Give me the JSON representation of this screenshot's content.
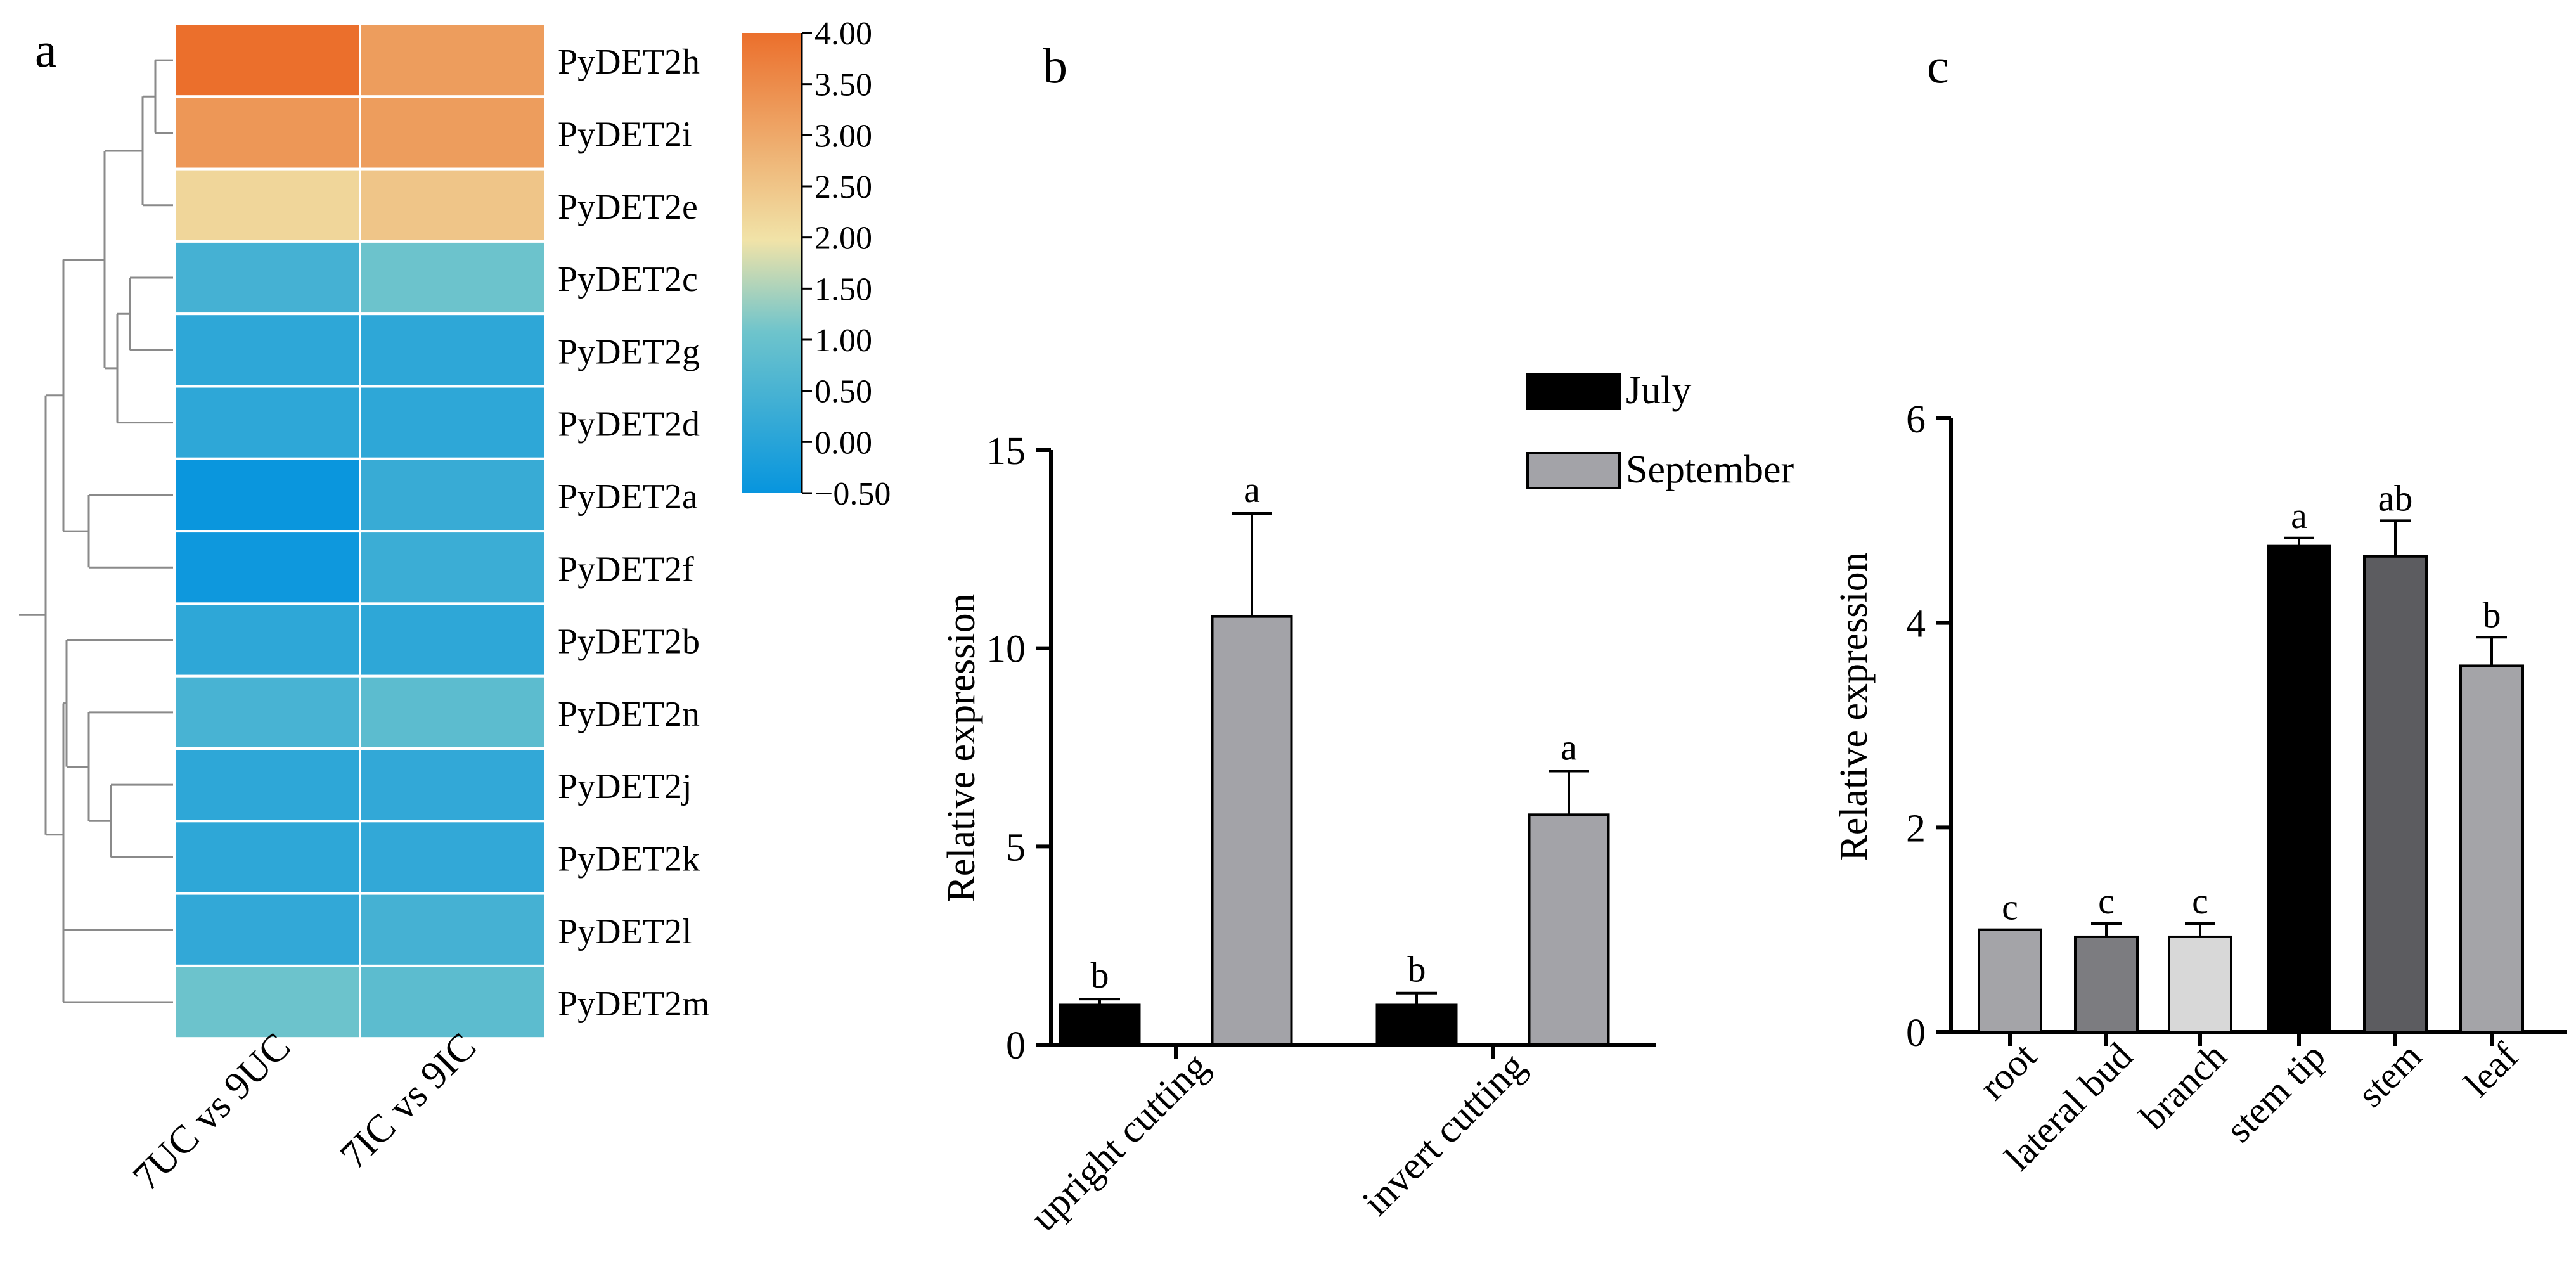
{
  "figure": {
    "panel_labels": [
      "a",
      "b",
      "c"
    ]
  },
  "chart_data": [
    {
      "type": "heatmap",
      "panel": "a",
      "columns": [
        "7UC vs 9UC",
        "7IC vs 9IC"
      ],
      "rows": [
        "PyDET2h",
        "PyDET2i",
        "PyDET2e",
        "PyDET2c",
        "PyDET2g",
        "PyDET2d",
        "PyDET2a",
        "PyDET2f",
        "PyDET2b",
        "PyDET2n",
        "PyDET2j",
        "PyDET2k",
        "PyDET2l",
        "PyDET2m"
      ],
      "values": [
        [
          4.0,
          3.2
        ],
        [
          3.3,
          3.2
        ],
        [
          2.2,
          2.5
        ],
        [
          0.45,
          1.05
        ],
        [
          0.1,
          0.1
        ],
        [
          0.1,
          0.1
        ],
        [
          -0.45,
          0.25
        ],
        [
          -0.4,
          0.3
        ],
        [
          0.1,
          0.1
        ],
        [
          0.5,
          0.8
        ],
        [
          0.1,
          0.15
        ],
        [
          0.1,
          0.15
        ],
        [
          0.15,
          0.45
        ],
        [
          1.05,
          0.8
        ]
      ],
      "colorbar": {
        "min": -0.5,
        "max": 4.0,
        "ticks": [
          "4.00",
          "3.50",
          "3.00",
          "2.50",
          "2.00",
          "1.50",
          "1.00",
          "0.50",
          "0.00",
          "-0.50"
        ],
        "colors": [
          "#0795de",
          "#6ec4cc",
          "#f1e3a8",
          "#eb6f2c"
        ]
      },
      "dendrogram": "row clustering tree (left)"
    },
    {
      "type": "bar",
      "panel": "b",
      "categories": [
        "upright cutting",
        "invert cutting"
      ],
      "series": [
        {
          "name": "July",
          "values": [
            1.0,
            1.0
          ],
          "errors": [
            0.15,
            0.3
          ],
          "letters": [
            "b",
            "b"
          ],
          "color": "#000000"
        },
        {
          "name": "September",
          "values": [
            10.8,
            5.8
          ],
          "errors": [
            2.6,
            1.1
          ],
          "letters": [
            "a",
            "a"
          ],
          "color": "#a3a3a8"
        }
      ],
      "ylabel": "Relative expression",
      "ylim": [
        0,
        15
      ],
      "yticks": [
        0,
        5,
        10,
        15
      ],
      "legend": [
        "July",
        "September"
      ]
    },
    {
      "type": "bar",
      "panel": "c",
      "categories": [
        "root",
        "lateral bud",
        "branch",
        "stem tip",
        "stem",
        "leaf"
      ],
      "values": [
        1.0,
        0.93,
        0.93,
        4.75,
        4.65,
        3.58
      ],
      "errors": [
        0.0,
        0.13,
        0.13,
        0.08,
        0.35,
        0.28
      ],
      "letters": [
        "c",
        "c",
        "c",
        "a",
        "ab",
        "b"
      ],
      "colors": [
        "#a4a4a8",
        "#7c7c80",
        "#d8d8d8",
        "#000000",
        "#5c5c60",
        "#a4a4a8"
      ],
      "ylabel": "Relative expression",
      "ylim": [
        0,
        6
      ],
      "yticks": [
        0,
        2,
        4,
        6
      ]
    }
  ]
}
